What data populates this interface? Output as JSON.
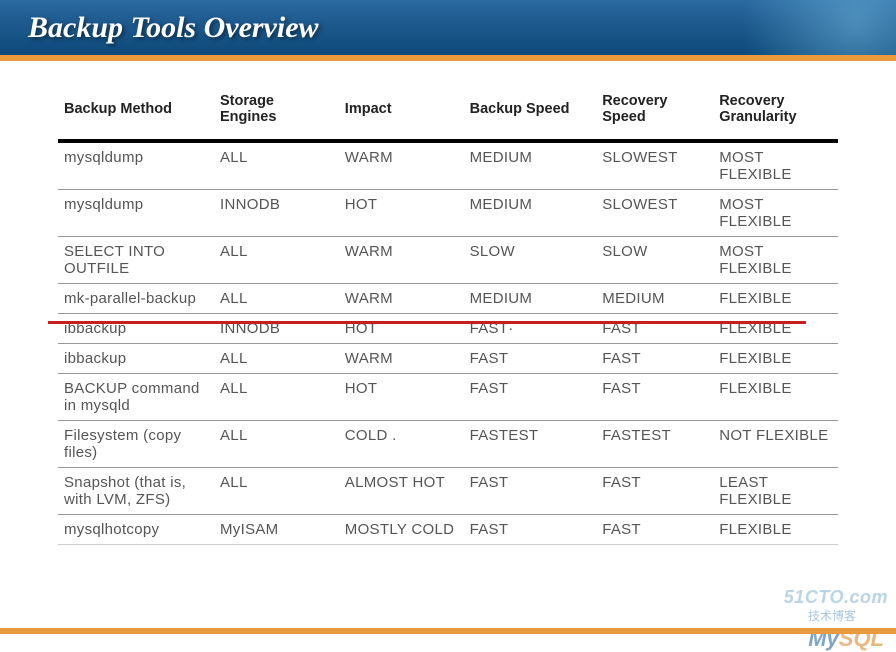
{
  "title": "Backup Tools Overview",
  "watermark": {
    "main": "51CTO.com",
    "sub": "技术博客"
  },
  "logo": {
    "left": "My",
    "right": "SQL"
  },
  "table": {
    "columns": [
      "Backup Method",
      "Storage Engines",
      "Impact",
      "Backup Speed",
      "Recovery Speed",
      "Recovery Granularity"
    ],
    "colClasses": [
      "col-method",
      "col-engine",
      "col-impact",
      "col-speed",
      "col-rspeed",
      "col-gran"
    ],
    "rows": [
      [
        "mysqldump",
        "ALL",
        "WARM",
        "MEDIUM",
        "SLOWEST",
        "MOST FLEXIBLE"
      ],
      [
        "mysqldump",
        "INNODB",
        "HOT",
        "MEDIUM",
        "SLOWEST",
        "MOST FLEXIBLE"
      ],
      [
        "SELECT INTO OUTFILE",
        "ALL",
        "WARM",
        "SLOW",
        "SLOW",
        "MOST FLEXIBLE"
      ],
      [
        "mk-parallel-backup",
        "ALL",
        "WARM",
        "MEDIUM",
        "MEDIUM",
        "FLEXIBLE"
      ],
      [
        "ibbackup",
        "INNODB",
        "HOT",
        "FAST·",
        "FAST",
        "FLEXIBLE"
      ],
      [
        "ibbackup",
        "ALL",
        "WARM",
        "FAST",
        "FAST",
        "FLEXIBLE"
      ],
      [
        "BACKUP command in mysqld",
        "ALL",
        "HOT",
        "FAST",
        "FAST",
        "FLEXIBLE"
      ],
      [
        "Filesystem (copy files)",
        "ALL",
        "COLD .",
        "FASTEST",
        "FASTEST",
        "NOT FLEXIBLE"
      ],
      [
        "Snapshot (that is, with LVM, ZFS)",
        "ALL",
        "ALMOST HOT",
        "FAST",
        "FAST",
        "LEAST FLEXIBLE"
      ],
      [
        "mysqlhotcopy",
        "MyISAM",
        "MOSTLY COLD",
        "FAST",
        "FAST",
        "FLEXIBLE"
      ]
    ]
  }
}
